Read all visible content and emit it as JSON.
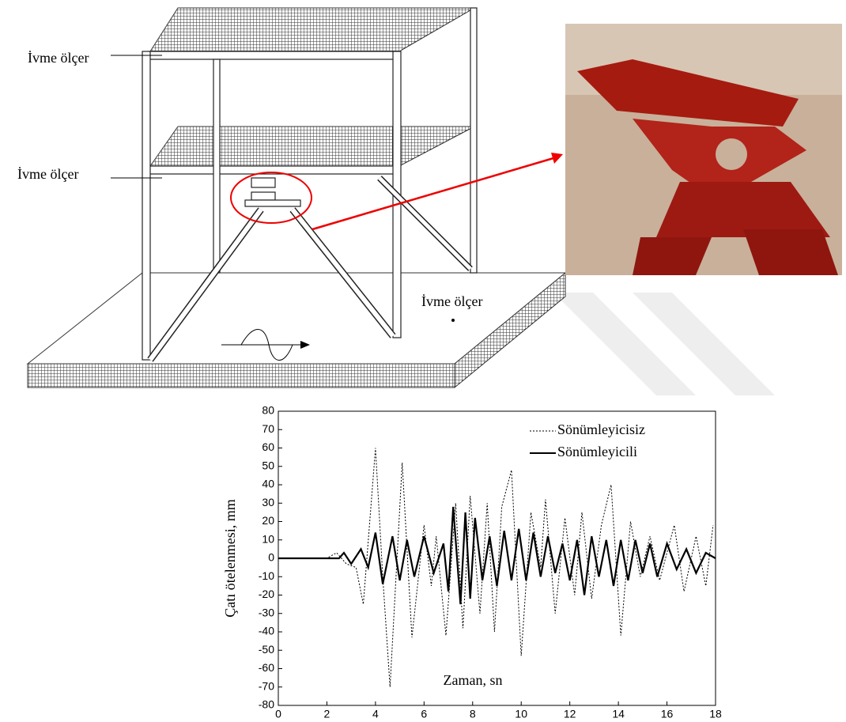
{
  "diagram": {
    "labels": [
      "İvme ölçer",
      "İvme ölçer",
      "İvme ölçer"
    ]
  },
  "chart_data": {
    "type": "line",
    "xlabel": "Zaman, sn",
    "ylabel": "Çatı ötelenmesi, mm",
    "xlim": [
      0,
      18
    ],
    "ylim": [
      -80,
      80
    ],
    "xticks": [
      0,
      2,
      4,
      6,
      8,
      10,
      12,
      14,
      16,
      18
    ],
    "yticks": [
      -80,
      -70,
      -60,
      -50,
      -40,
      -30,
      -20,
      -10,
      0,
      10,
      20,
      30,
      40,
      50,
      60,
      70,
      80
    ],
    "series": [
      {
        "name": "Sönümleyicisiz",
        "color": "#000000",
        "style": "dotted",
        "x": [
          0,
          2,
          2.4,
          2.8,
          3.2,
          3.5,
          4.0,
          4.3,
          4.6,
          5.1,
          5.5,
          6.0,
          6.3,
          6.5,
          6.9,
          7.3,
          7.6,
          7.9,
          8.3,
          8.6,
          8.9,
          9.2,
          9.6,
          10.0,
          10.4,
          10.8,
          11.0,
          11.4,
          11.8,
          12.2,
          12.5,
          12.9,
          13.3,
          13.7,
          14.1,
          14.5,
          14.9,
          15.3,
          15.7,
          16.3,
          16.7,
          17.2,
          17.6,
          17.9
        ],
        "values": [
          0,
          0,
          3,
          -3,
          -5,
          -25,
          60,
          -10,
          -70,
          52,
          -43,
          18,
          -15,
          12,
          -42,
          30,
          -38,
          34,
          -30,
          30,
          -40,
          28,
          48,
          -53,
          25,
          -5,
          32,
          -30,
          22,
          -20,
          25,
          -22,
          18,
          40,
          -42,
          20,
          -10,
          12,
          -12,
          18,
          -18,
          12,
          -15,
          18
        ]
      },
      {
        "name": "Sönümleyicili",
        "color": "#000000",
        "style": "solid",
        "x": [
          0,
          2.5,
          2.7,
          3.0,
          3.4,
          3.7,
          4.0,
          4.3,
          4.7,
          5.0,
          5.3,
          5.6,
          6.0,
          6.4,
          6.8,
          7.0,
          7.2,
          7.5,
          7.7,
          7.9,
          8.1,
          8.4,
          8.7,
          9.0,
          9.3,
          9.6,
          9.9,
          10.2,
          10.5,
          10.8,
          11.1,
          11.4,
          11.7,
          12.0,
          12.3,
          12.6,
          12.9,
          13.2,
          13.5,
          13.8,
          14.1,
          14.4,
          14.7,
          15.0,
          15.3,
          15.6,
          16.0,
          16.4,
          16.8,
          17.2,
          17.6,
          18
        ],
        "values": [
          0,
          0,
          3,
          -3,
          5,
          -5,
          14,
          -14,
          12,
          -12,
          10,
          -10,
          12,
          -8,
          8,
          -18,
          28,
          -25,
          25,
          -22,
          22,
          -12,
          12,
          -15,
          15,
          -12,
          16,
          -12,
          14,
          -10,
          12,
          -8,
          8,
          -12,
          10,
          -20,
          12,
          -10,
          10,
          -15,
          10,
          -12,
          10,
          -8,
          8,
          -10,
          8,
          -6,
          5,
          -8,
          3,
          0
        ]
      }
    ]
  }
}
